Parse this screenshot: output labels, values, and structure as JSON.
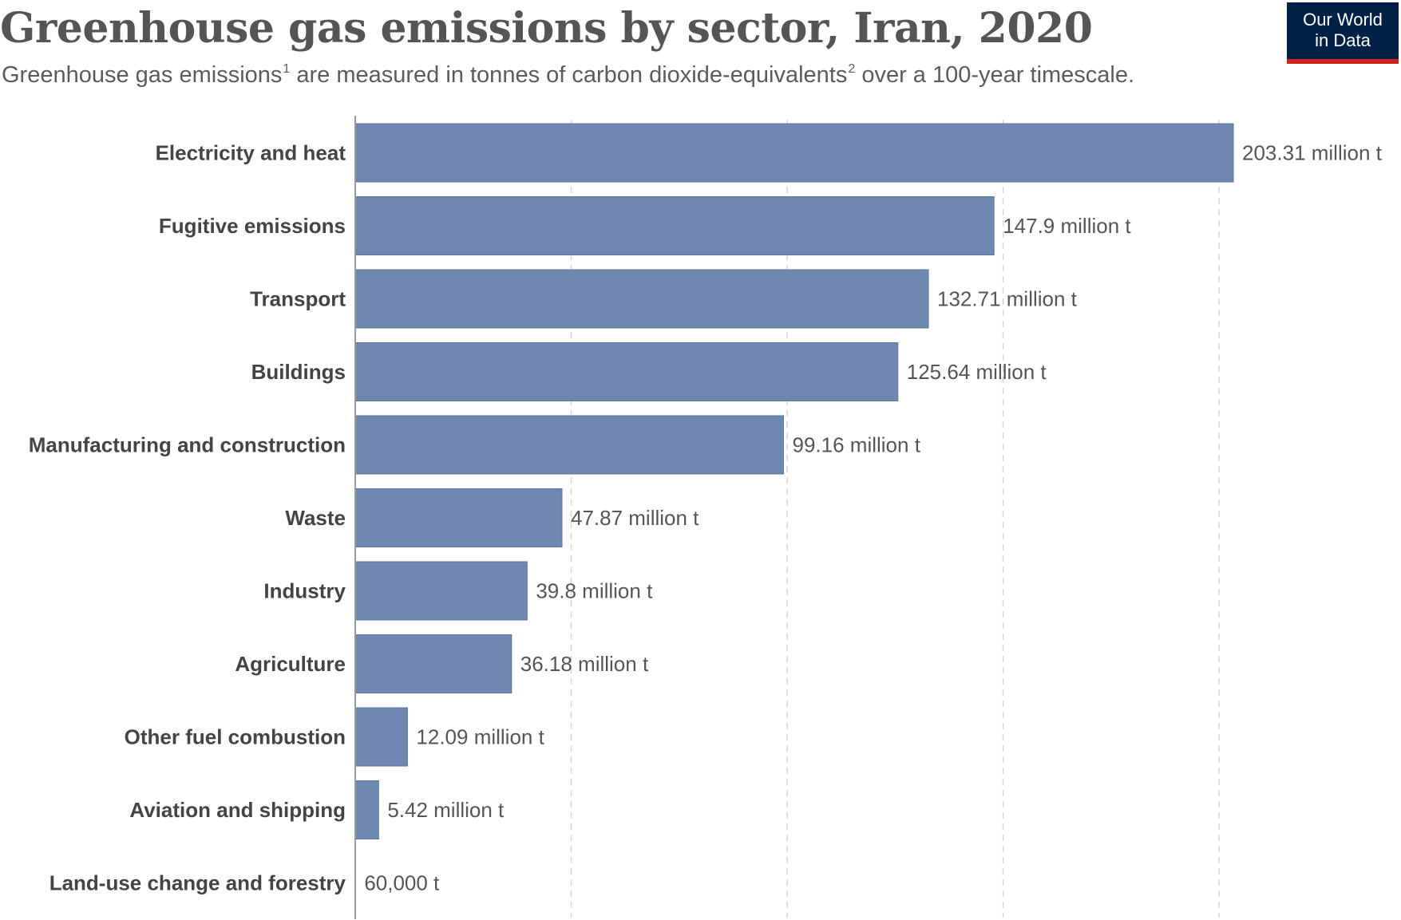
{
  "title": "Greenhouse gas emissions by sector, Iran, 2020",
  "subtitle": {
    "part1": "Greenhouse gas emissions",
    "sup1": "1",
    "part2": " are measured in tonnes of carbon dioxide-equivalents",
    "sup2": "2",
    "part3": " over a 100-year timescale."
  },
  "logo": {
    "line1": "Our World",
    "line2": "in Data",
    "background": "#002147",
    "accent": "#ce261e"
  },
  "colors": {
    "bar": "#6f88b2",
    "bar_stroke": "#5d76a0",
    "grid": "#d6d6d6",
    "axis": "#999999"
  },
  "chart_data": {
    "type": "bar",
    "orientation": "horizontal",
    "categories": [
      "Electricity and heat",
      "Fugitive emissions",
      "Transport",
      "Buildings",
      "Manufacturing and construction",
      "Waste",
      "Industry",
      "Agriculture",
      "Other fuel combustion",
      "Aviation and shipping",
      "Land-use change and forestry"
    ],
    "values": [
      203.31,
      147.9,
      132.71,
      125.64,
      99.16,
      47.87,
      39.8,
      36.18,
      12.09,
      5.42,
      0.06
    ],
    "value_labels": [
      "203.31 million t",
      "147.9 million t",
      "132.71 million t",
      "125.64 million t",
      "99.16 million t",
      "47.87 million t",
      "39.8 million t",
      "36.18 million t",
      "12.09 million t",
      "5.42 million t",
      "60,000 t"
    ],
    "units": "million t",
    "xlim": [
      0,
      203.31
    ],
    "grid_values": [
      50,
      100,
      150,
      200
    ],
    "grid": "vertical-dashed",
    "legend": "none"
  }
}
